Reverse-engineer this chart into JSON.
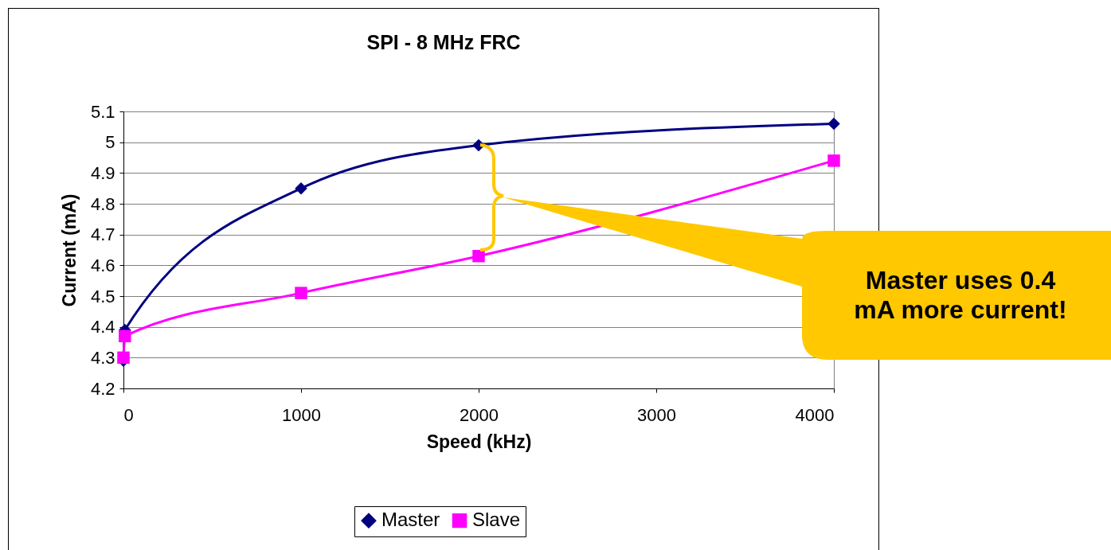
{
  "chart_data": {
    "type": "line",
    "title": "SPI - 8 MHz FRC",
    "xlabel": "Speed (kHz)",
    "ylabel": "Current (mA)",
    "xlim": [
      0,
      4000
    ],
    "xticks": [
      0,
      1000,
      2000,
      3000,
      4000
    ],
    "ylim": [
      4.2,
      5.1
    ],
    "yticks": [
      4.2,
      4.3,
      4.4,
      4.5,
      4.6,
      4.7,
      4.8,
      4.9,
      5,
      5.1
    ],
    "grid": "y",
    "legend": "bottom",
    "line_style": "solid",
    "annotations": [
      "Master uses 0.4 mA more current!"
    ],
    "series": [
      {
        "name": "Master",
        "color": "#000080",
        "marker": "diamond",
        "x": [
          0,
          8,
          1000,
          2000,
          4000
        ],
        "values": [
          4.29,
          4.39,
          4.85,
          4.99,
          5.06
        ]
      },
      {
        "name": "Slave",
        "color": "#ff00ff",
        "marker": "square",
        "x": [
          0,
          8,
          1000,
          2000,
          4000
        ],
        "values": [
          4.3,
          4.37,
          4.51,
          4.63,
          4.94
        ]
      }
    ]
  }
}
